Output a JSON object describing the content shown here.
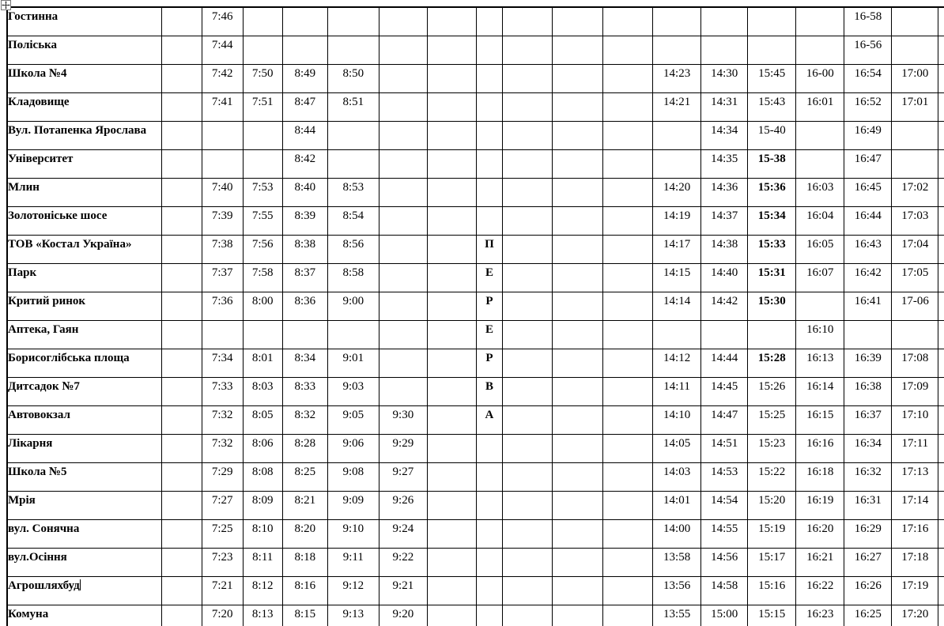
{
  "colors": {
    "border": "#000000",
    "text": "#000000",
    "background": "#ffffff"
  },
  "icons": {
    "table_handle": "move-cross-icon"
  },
  "table": {
    "rows": [
      {
        "name": "Гостинна",
        "cells": [
          "",
          "7:46",
          "",
          "",
          "",
          "",
          "",
          "",
          "",
          "",
          "",
          "",
          "",
          "",
          "",
          "16-58",
          "",
          ""
        ],
        "bold": []
      },
      {
        "name": "Поліська",
        "cells": [
          "",
          "7:44",
          "",
          "",
          "",
          "",
          "",
          "",
          "",
          "",
          "",
          "",
          "",
          "",
          "",
          "16-56",
          "",
          ""
        ],
        "bold": []
      },
      {
        "name": "Школа №4",
        "cells": [
          "",
          "7:42",
          "7:50",
          "8:49",
          "8:50",
          "",
          "",
          "",
          "",
          "",
          "",
          "14:23",
          "14:30",
          "15:45",
          "16-00",
          "16:54",
          "17:00",
          ""
        ],
        "bold": []
      },
      {
        "name": "Кладовище",
        "cells": [
          "",
          "7:41",
          "7:51",
          "8:47",
          "8:51",
          "",
          "",
          "",
          "",
          "",
          "",
          "14:21",
          "14:31",
          "15:43",
          "16:01",
          "16:52",
          "17:01",
          ""
        ],
        "bold": []
      },
      {
        "name": "Вул. Потапенка Ярослава",
        "cells": [
          "",
          "",
          "",
          "8:44",
          "",
          "",
          "",
          "",
          "",
          "",
          "",
          "",
          "14:34",
          "15-40",
          "",
          "16:49",
          "",
          ""
        ],
        "bold": []
      },
      {
        "name": "Університет",
        "cells": [
          "",
          "",
          "",
          "8:42",
          "",
          "",
          "",
          "",
          "",
          "",
          "",
          "",
          "14:35",
          "15-38",
          "",
          "16:47",
          "",
          ""
        ],
        "bold": [
          13
        ]
      },
      {
        "name": "Млин",
        "cells": [
          "",
          "7:40",
          "7:53",
          "8:40",
          "8:53",
          "",
          "",
          "",
          "",
          "",
          "",
          "14:20",
          "14:36",
          "15:36",
          "16:03",
          "16:45",
          "17:02",
          ""
        ],
        "bold": [
          13
        ]
      },
      {
        "name": "Золотоніське шосе",
        "cells": [
          "",
          "7:39",
          "7:55",
          "8:39",
          "8:54",
          "",
          "",
          "",
          "",
          "",
          "",
          "14:19",
          "14:37",
          "15:34",
          "16:04",
          "16:44",
          "17:03",
          ""
        ],
        "bold": [
          13
        ]
      },
      {
        "name": "ТОВ «Костал Україна»",
        "cells": [
          "",
          "7:38",
          "7:56",
          "8:38",
          "8:56",
          "",
          "",
          "П",
          "",
          "",
          "",
          "14:17",
          "14:38",
          "15:33",
          "16:05",
          "16:43",
          "17:04",
          ""
        ],
        "bold": [
          7,
          13
        ]
      },
      {
        "name": "Парк",
        "cells": [
          "",
          "7:37",
          "7:58",
          "8:37",
          "8:58",
          "",
          "",
          "Е",
          "",
          "",
          "",
          "14:15",
          "14:40",
          "15:31",
          "16:07",
          "16:42",
          "17:05",
          ""
        ],
        "bold": [
          7,
          13
        ]
      },
      {
        "name": "Критий ринок",
        "cells": [
          "",
          "7:36",
          "8:00",
          "8:36",
          "9:00",
          "",
          "",
          "Р",
          "",
          "",
          "",
          "14:14",
          "14:42",
          "15:30",
          "",
          "16:41",
          "17-06",
          ""
        ],
        "bold": [
          7,
          13
        ]
      },
      {
        "name": "Аптека, Гаян",
        "cells": [
          "",
          "",
          "",
          "",
          "",
          "",
          "",
          "Е",
          "",
          "",
          "",
          "",
          "",
          "",
          "16:10",
          "",
          "",
          ""
        ],
        "bold": [
          7
        ]
      },
      {
        "name": "Борисоглібська площа",
        "cells": [
          "",
          "7:34",
          "8:01",
          "8:34",
          "9:01",
          "",
          "",
          "Р",
          "",
          "",
          "",
          "14:12",
          "14:44",
          "15:28",
          "16:13",
          "16:39",
          "17:08",
          ""
        ],
        "bold": [
          7,
          13
        ]
      },
      {
        "name": "Дитсадок №7",
        "cells": [
          "",
          "7:33",
          "8:03",
          "8:33",
          "9:03",
          "",
          "",
          "В",
          "",
          "",
          "",
          "14:11",
          "14:45",
          "15:26",
          "16:14",
          "16:38",
          "17:09",
          ""
        ],
        "bold": [
          7
        ]
      },
      {
        "name": "Автовокзал",
        "cells": [
          "",
          "7:32",
          "8:05",
          "8:32",
          "9:05",
          "9:30",
          "",
          "А",
          "",
          "",
          "",
          "14:10",
          "14:47",
          "15:25",
          "16:15",
          "16:37",
          "17:10",
          ""
        ],
        "bold": [
          7
        ]
      },
      {
        "name": "Лікарня",
        "cells": [
          "",
          "7:32",
          "8:06",
          "8:28",
          "9:06",
          "9:29",
          "",
          "",
          "",
          "",
          "",
          "14:05",
          "14:51",
          "15:23",
          "16:16",
          "16:34",
          "17:11",
          ""
        ],
        "bold": []
      },
      {
        "name": "Школа №5",
        "cells": [
          "",
          "7:29",
          "8:08",
          "8:25",
          "9:08",
          "9:27",
          "",
          "",
          "",
          "",
          "",
          "14:03",
          "14:53",
          "15:22",
          "16:18",
          "16:32",
          "17:13",
          ""
        ],
        "bold": []
      },
      {
        "name": "Мрія",
        "cells": [
          "",
          "7:27",
          "8:09",
          "8:21",
          "9:09",
          "9:26",
          "",
          "",
          "",
          "",
          "",
          "14:01",
          "14:54",
          "15:20",
          "16:19",
          "16:31",
          "17:14",
          ""
        ],
        "bold": []
      },
      {
        "name": "вул. Сонячна",
        "cells": [
          "",
          "7:25",
          "8:10",
          "8:20",
          "9:10",
          "9:24",
          "",
          "",
          "",
          "",
          "",
          "14:00",
          "14:55",
          "15:19",
          "16:20",
          "16:29",
          "17:16",
          ""
        ],
        "bold": []
      },
      {
        "name": "вул.Осіння",
        "cells": [
          "",
          "7:23",
          "8:11",
          "8:18",
          "9:11",
          "9:22",
          "",
          "",
          "",
          "",
          "",
          "13:58",
          "14:56",
          "15:17",
          "16:21",
          "16:27",
          "17:18",
          ""
        ],
        "bold": []
      },
      {
        "name": "Агрошляхбуд",
        "cells": [
          "",
          "7:21",
          "8:12",
          "8:16",
          "9:12",
          "9:21",
          "",
          "",
          "",
          "",
          "",
          "13:56",
          "14:58",
          "15:16",
          "16:22",
          "16:26",
          "17:19",
          ""
        ],
        "bold": [],
        "has_caret": true
      },
      {
        "name": "Комуна",
        "cells": [
          "",
          "7:20",
          "8:13",
          "8:15",
          "9:13",
          "9:20",
          "",
          "",
          "",
          "",
          "",
          "13:55",
          "15:00",
          "15:15",
          "16:23",
          "16:25",
          "17:20",
          ""
        ],
        "bold": []
      }
    ]
  }
}
